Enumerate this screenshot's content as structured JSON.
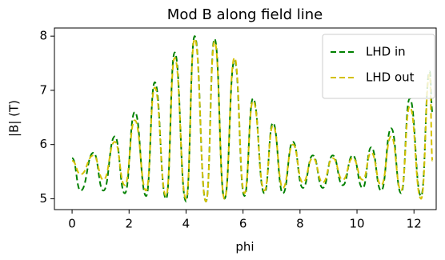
{
  "chart_data": {
    "type": "line",
    "title": "Mod B along field line",
    "x_label": "phi",
    "y_label": "|B| (T)",
    "x": [
      0,
      0.3,
      0.75,
      1.1,
      1.5,
      1.85,
      2.2,
      2.6,
      2.9,
      3.3,
      3.6,
      4.0,
      4.3,
      4.7,
      5.0,
      5.35,
      5.7,
      6.05,
      6.35,
      6.75,
      7.05,
      7.4,
      7.75,
      8.1,
      8.45,
      8.8,
      9.15,
      9.5,
      9.85,
      10.2,
      10.5,
      10.85,
      11.2,
      11.55,
      11.85,
      12.25,
      12.55,
      12.65
    ],
    "series": [
      {
        "name": "LHD in",
        "color": "#008000",
        "values": [
          5.75,
          5.15,
          5.85,
          5.15,
          6.15,
          5.1,
          6.6,
          5.05,
          7.15,
          5.0,
          7.7,
          4.95,
          8.0,
          4.95,
          7.95,
          5.0,
          7.55,
          5.05,
          6.85,
          5.1,
          6.4,
          5.1,
          6.05,
          5.2,
          5.8,
          5.2,
          5.8,
          5.25,
          5.8,
          5.2,
          5.95,
          5.15,
          6.3,
          5.1,
          6.85,
          5.05,
          7.35,
          6.6
        ]
      },
      {
        "name": "LHD out",
        "color": "#d4c000",
        "values": [
          5.7,
          5.45,
          5.8,
          5.35,
          6.05,
          5.25,
          6.45,
          5.15,
          7.05,
          5.05,
          7.6,
          5.0,
          7.95,
          4.95,
          7.9,
          5.0,
          7.6,
          5.1,
          6.8,
          5.15,
          6.35,
          5.2,
          6.0,
          5.3,
          5.75,
          5.3,
          5.75,
          5.35,
          5.75,
          5.35,
          5.85,
          5.25,
          6.15,
          5.15,
          6.7,
          5.0,
          7.3,
          5.7
        ]
      }
    ],
    "xlim": [
      -0.62,
      12.78
    ],
    "ylim": [
      4.8,
      8.15
    ],
    "xticks": [
      0,
      2,
      4,
      6,
      8,
      10,
      12
    ],
    "yticks": [
      5,
      6,
      7,
      8
    ],
    "line_style": "dashed",
    "legend": "upper right",
    "grid": false
  }
}
